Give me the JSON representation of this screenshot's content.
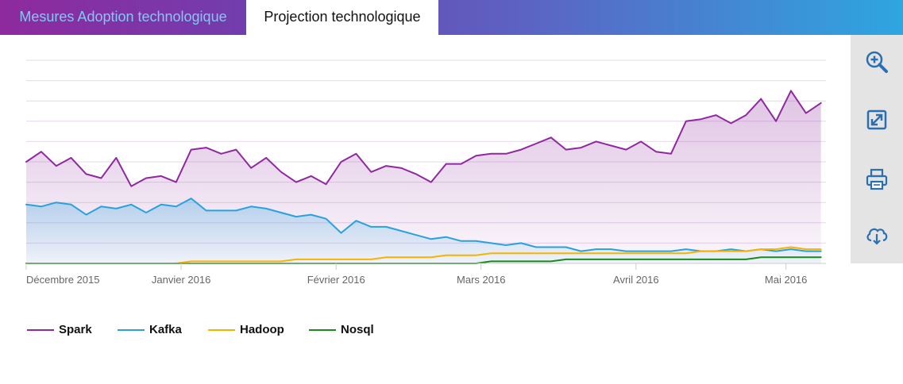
{
  "tabs": [
    {
      "label": "Mesures Adoption technologique",
      "active": false
    },
    {
      "label": "Projection technologique",
      "active": true
    }
  ],
  "toolbar": {
    "icons": [
      "zoom-in-icon",
      "expand-icon",
      "print-icon",
      "cloud-download-icon"
    ],
    "accent": "#2a6fb0"
  },
  "chart_data": {
    "type": "area",
    "title": "",
    "xlabel": "",
    "ylabel": "",
    "x_ticks": [
      "Décembre 2015",
      "Janvier 2016",
      "Février 2016",
      "Mars 2016",
      "Avril 2016",
      "Mai 2016"
    ],
    "x_tick_dates": [
      "2015-12-01",
      "2016-01-01",
      "2016-02-01",
      "2016-03-01",
      "2016-04-01",
      "2016-05-01"
    ],
    "x_range": [
      "2015-12-01",
      "2016-05-09"
    ],
    "ylim": [
      0,
      100
    ],
    "grid": true,
    "legend_position": "bottom-left",
    "x": [
      "2015-12-01",
      "2015-12-04",
      "2015-12-07",
      "2015-12-10",
      "2015-12-13",
      "2015-12-16",
      "2015-12-19",
      "2015-12-22",
      "2015-12-25",
      "2015-12-28",
      "2015-12-31",
      "2016-01-03",
      "2016-01-06",
      "2016-01-09",
      "2016-01-12",
      "2016-01-15",
      "2016-01-18",
      "2016-01-21",
      "2016-01-24",
      "2016-01-27",
      "2016-01-30",
      "2016-02-02",
      "2016-02-05",
      "2016-02-08",
      "2016-02-11",
      "2016-02-14",
      "2016-02-17",
      "2016-02-20",
      "2016-02-23",
      "2016-02-26",
      "2016-02-29",
      "2016-03-03",
      "2016-03-06",
      "2016-03-09",
      "2016-03-12",
      "2016-03-15",
      "2016-03-18",
      "2016-03-21",
      "2016-03-24",
      "2016-03-27",
      "2016-03-30",
      "2016-04-02",
      "2016-04-05",
      "2016-04-08",
      "2016-04-11",
      "2016-04-14",
      "2016-04-17",
      "2016-04-20",
      "2016-04-23",
      "2016-04-26",
      "2016-04-29",
      "2016-05-02",
      "2016-05-05",
      "2016-05-08"
    ],
    "series": [
      {
        "name": "Spark",
        "color": "#8e2a9e",
        "fill": true,
        "values": [
          50,
          55,
          48,
          52,
          44,
          42,
          52,
          38,
          42,
          43,
          40,
          56,
          57,
          54,
          56,
          47,
          52,
          45,
          40,
          43,
          39,
          50,
          54,
          45,
          48,
          47,
          44,
          40,
          49,
          49,
          53,
          54,
          54,
          56,
          59,
          62,
          56,
          57,
          60,
          58,
          56,
          60,
          55,
          54,
          70,
          71,
          73,
          69,
          73,
          81,
          70,
          85,
          74,
          79
        ]
      },
      {
        "name": "Kafka",
        "color": "#29a2dc",
        "fill": true,
        "values": [
          29,
          28,
          30,
          29,
          24,
          28,
          27,
          29,
          25,
          29,
          28,
          32,
          26,
          26,
          26,
          28,
          27,
          25,
          23,
          24,
          22,
          15,
          21,
          18,
          18,
          16,
          14,
          12,
          13,
          11,
          11,
          10,
          9,
          10,
          8,
          8,
          8,
          6,
          7,
          7,
          6,
          6,
          6,
          6,
          7,
          6,
          6,
          7,
          6,
          7,
          6,
          7,
          6,
          6
        ]
      },
      {
        "name": "Hadoop",
        "color": "#f5b400",
        "fill": false,
        "values": [
          0,
          0,
          0,
          0,
          0,
          0,
          0,
          0,
          0,
          0,
          0,
          1,
          1,
          1,
          1,
          1,
          1,
          1,
          2,
          2,
          2,
          2,
          2,
          2,
          3,
          3,
          3,
          3,
          4,
          4,
          4,
          5,
          5,
          5,
          5,
          5,
          5,
          5,
          5,
          5,
          5,
          5,
          5,
          5,
          5,
          6,
          6,
          6,
          6,
          7,
          7,
          8,
          7,
          7
        ]
      },
      {
        "name": "Nosql",
        "color": "#1a8a1a",
        "fill": false,
        "values": [
          0,
          0,
          0,
          0,
          0,
          0,
          0,
          0,
          0,
          0,
          0,
          0,
          0,
          0,
          0,
          0,
          0,
          0,
          0,
          0,
          0,
          0,
          0,
          0,
          0,
          0,
          0,
          0,
          0,
          0,
          0,
          1,
          1,
          1,
          1,
          1,
          2,
          2,
          2,
          2,
          2,
          2,
          2,
          2,
          2,
          2,
          2,
          2,
          2,
          3,
          3,
          3,
          3,
          3
        ]
      }
    ]
  }
}
